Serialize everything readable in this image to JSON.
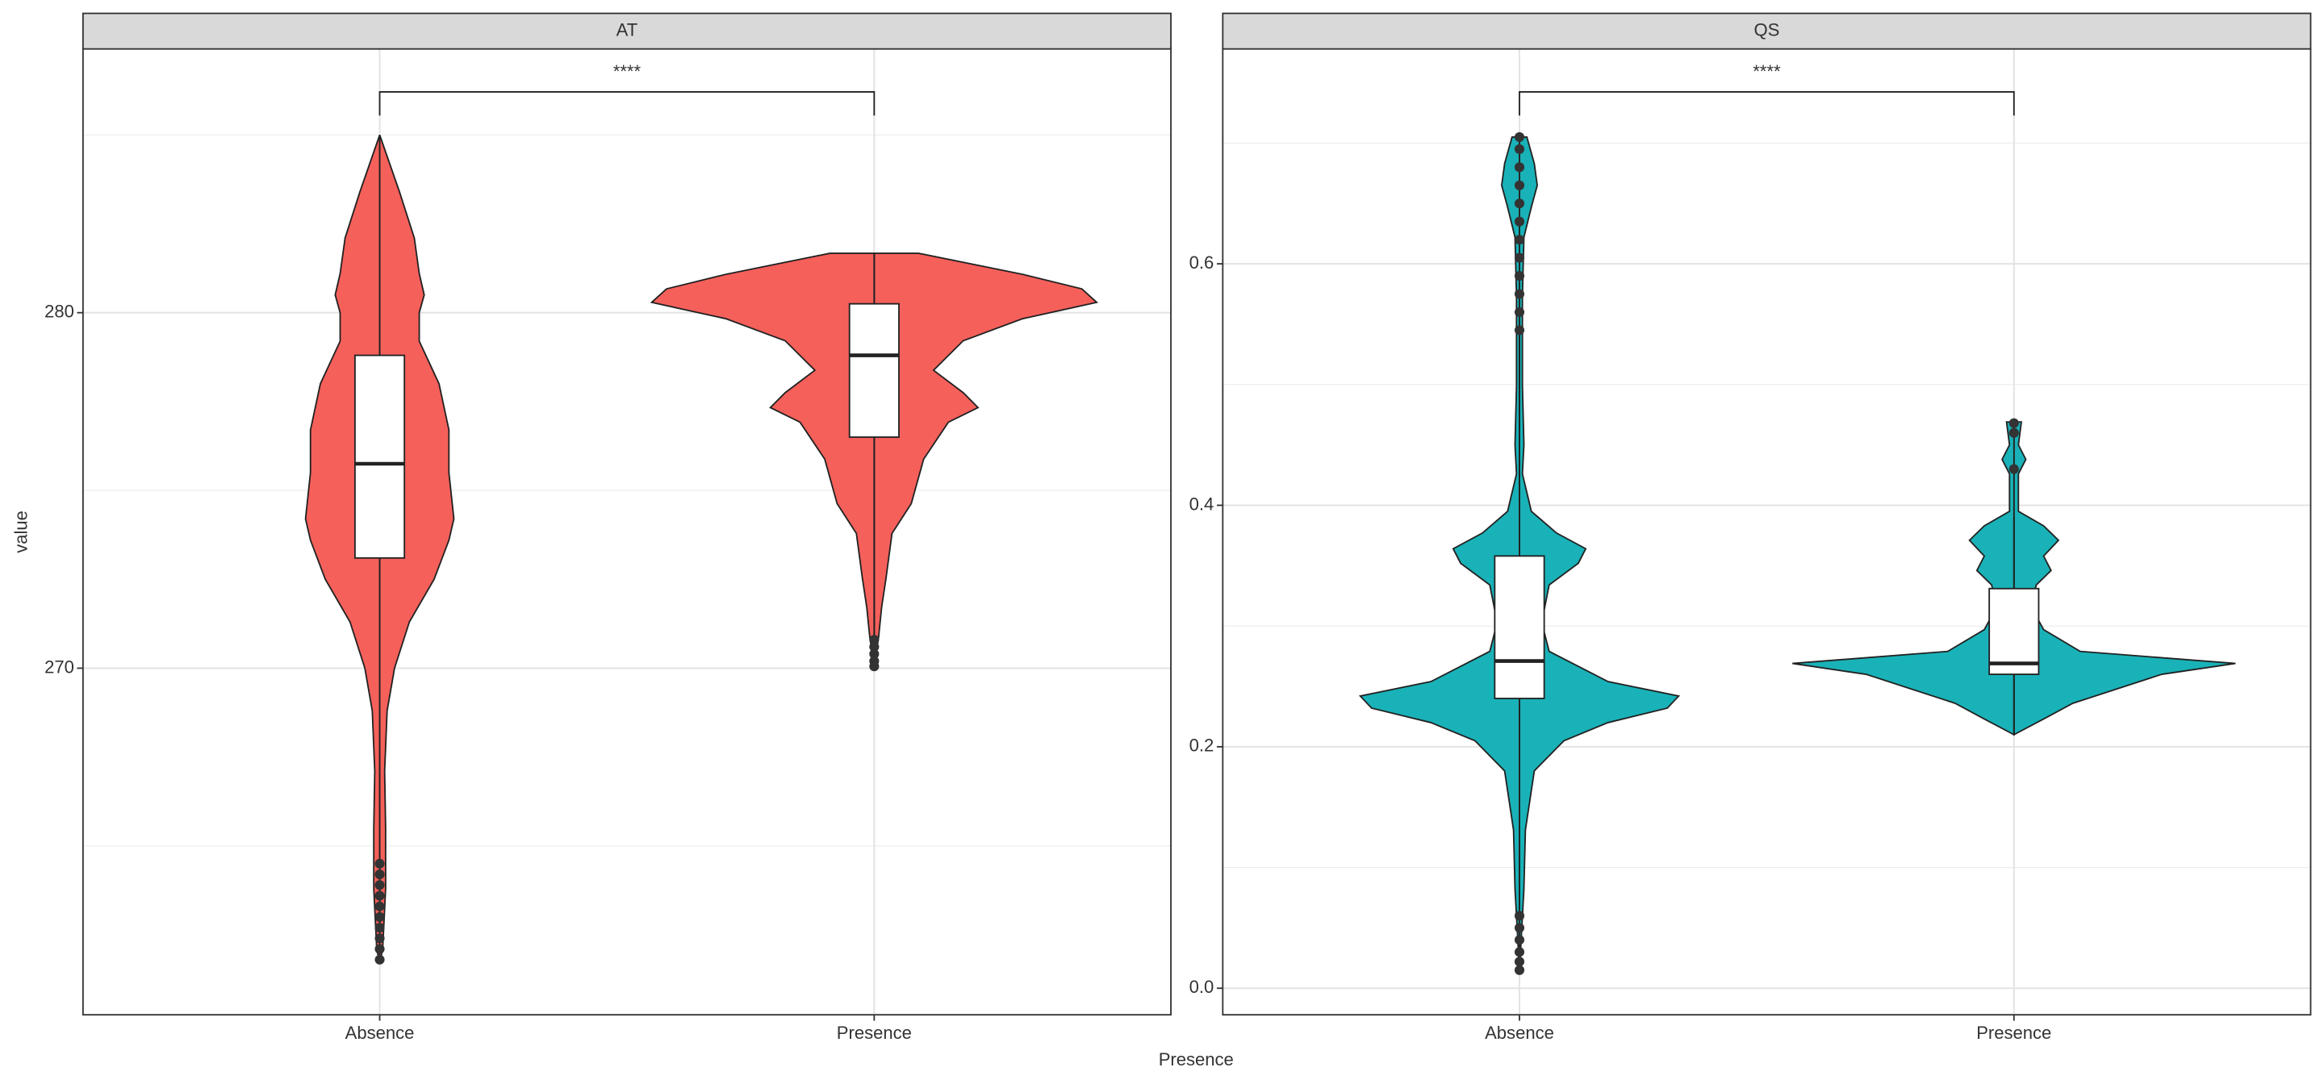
{
  "chart_data": [
    {
      "type": "violin",
      "title": "AT",
      "ylabel": "value",
      "annotation": "****",
      "color": "#f5605b",
      "categories": [
        "Absence",
        "Presence"
      ],
      "ylim": [
        260.25,
        287.42
      ],
      "yticks": [
        270,
        280
      ],
      "minor_yticks": [
        265,
        275,
        285
      ],
      "grid": true,
      "groups": [
        {
          "y": [
            285.0,
            284.2,
            283.4,
            282.1,
            281.1,
            280.5,
            280.0,
            279.2,
            278.0,
            276.7,
            275.5,
            274.2,
            273.6,
            272.5,
            271.3,
            270.0,
            268.8,
            267.1,
            265.5,
            263.8,
            262.1,
            261.7
          ],
          "density": [
            0,
            0.02,
            0.04,
            0.07,
            0.08,
            0.09,
            0.08,
            0.08,
            0.12,
            0.14,
            0.14,
            0.15,
            0.14,
            0.11,
            0.06,
            0.03,
            0.015,
            0.01,
            0.012,
            0.012,
            0.006,
            0
          ],
          "whisker_low": 264.7,
          "q1": 273.1,
          "median": 275.75,
          "q3": 278.8,
          "whisker_high": 285.0,
          "outliers": [
            264.5,
            264.2,
            263.9,
            263.6,
            263.3,
            263.0,
            262.7,
            262.4,
            262.1,
            261.8
          ]
        },
        {
          "y": [
            281.67,
            281.08,
            280.67,
            280.29,
            279.83,
            279.21,
            278.38,
            277.75,
            277.33,
            276.92,
            275.88,
            274.63,
            273.79,
            272.54,
            271.71,
            270.88,
            270.04
          ],
          "density": [
            0.09,
            0.3,
            0.42,
            0.45,
            0.3,
            0.18,
            0.12,
            0.18,
            0.21,
            0.15,
            0.1,
            0.075,
            0.036,
            0.024,
            0.015,
            0.009,
            0
          ],
          "whisker_low": 270.9,
          "q1": 276.5,
          "median": 278.8,
          "q3": 280.25,
          "whisker_high": 281.67,
          "outliers": [
            270.8,
            270.6,
            270.4,
            270.2,
            270.05
          ]
        }
      ]
    },
    {
      "type": "violin",
      "title": "QS",
      "xlabel": "Presence",
      "annotation": "****",
      "color": "#19b2b8",
      "categories": [
        "Absence",
        "Presence"
      ],
      "ylim": [
        -0.022,
        0.778
      ],
      "yticks": [
        {
          "value": 0,
          "label": "0.0"
        },
        0.2,
        0.4,
        0.6
      ],
      "minor_yticks": [
        0.1,
        0.3,
        0.5,
        0.7
      ],
      "grid": true,
      "groups": [
        {
          "y": [
            0.705,
            0.683,
            0.665,
            0.647,
            0.622,
            0.573,
            0.499,
            0.45,
            0.426,
            0.395,
            0.377,
            0.364,
            0.352,
            0.334,
            0.303,
            0.279,
            0.254,
            0.242,
            0.232,
            0.22,
            0.205,
            0.18,
            0.131,
            0.082,
            0.015
          ],
          "density": [
            0.015,
            0.03,
            0.036,
            0.024,
            0.009,
            0.006,
            0.006,
            0.009,
            0.006,
            0.024,
            0.075,
            0.134,
            0.119,
            0.06,
            0.045,
            0.06,
            0.179,
            0.322,
            0.299,
            0.179,
            0.09,
            0.03,
            0.012,
            0.009,
            0
          ],
          "whisker_low": 0.065,
          "q1": 0.24,
          "median": 0.271,
          "q3": 0.358,
          "whisker_high": 0.54,
          "outliers": [
            0.545,
            0.56,
            0.575,
            0.59,
            0.605,
            0.62,
            0.635,
            0.65,
            0.665,
            0.68,
            0.695,
            0.705,
            0.06,
            0.05,
            0.04,
            0.03,
            0.022,
            0.015
          ]
        },
        {
          "y": [
            0.469,
            0.45,
            0.438,
            0.426,
            0.395,
            0.383,
            0.371,
            0.358,
            0.346,
            0.334,
            0.315,
            0.297,
            0.279,
            0.269,
            0.26,
            0.248,
            0.236,
            0.223,
            0.21
          ],
          "density": [
            0.015,
            0.009,
            0.024,
            0.009,
            0.009,
            0.06,
            0.09,
            0.06,
            0.075,
            0.045,
            0.036,
            0.06,
            0.134,
            0.448,
            0.299,
            0.209,
            0.119,
            0.06,
            0
          ],
          "whisker_low": 0.21,
          "q1": 0.26,
          "median": 0.269,
          "q3": 0.331,
          "whisker_high": 0.39,
          "outliers": [
            0.43,
            0.46,
            0.468
          ]
        }
      ]
    }
  ]
}
